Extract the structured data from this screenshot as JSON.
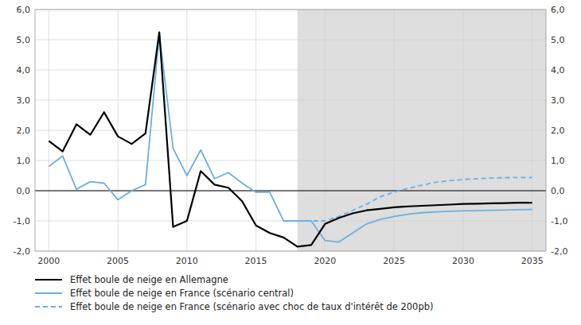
{
  "chart_data": {
    "type": "line",
    "x": [
      2000,
      2001,
      2002,
      2003,
      2004,
      2005,
      2006,
      2007,
      2008,
      2009,
      2010,
      2011,
      2012,
      2013,
      2014,
      2015,
      2016,
      2017,
      2018,
      2019,
      2020,
      2021,
      2022,
      2023,
      2024,
      2025,
      2026,
      2027,
      2028,
      2029,
      2030,
      2031,
      2032,
      2033,
      2034,
      2035
    ],
    "series": [
      {
        "name": "Effet boule de neige en Allemagne",
        "color": "#000000",
        "line_style": "solid",
        "values": [
          1.65,
          1.3,
          2.2,
          1.85,
          2.6,
          1.8,
          1.55,
          1.9,
          5.25,
          -1.2,
          -1.0,
          0.65,
          0.2,
          0.1,
          -0.35,
          -1.15,
          -1.4,
          -1.55,
          -1.85,
          -1.8,
          -1.1,
          -0.9,
          -0.75,
          -0.65,
          -0.6,
          -0.55,
          -0.52,
          -0.5,
          -0.48,
          -0.46,
          -0.44,
          -0.43,
          -0.42,
          -0.41,
          -0.4,
          -0.4
        ]
      },
      {
        "name": "Effet boule de neige en France (scénario central)",
        "color": "#6ab0e0",
        "line_style": "solid",
        "values": [
          0.8,
          1.15,
          0.05,
          0.3,
          0.25,
          -0.3,
          0.0,
          0.2,
          5.2,
          1.4,
          0.5,
          1.35,
          0.4,
          0.6,
          0.25,
          -0.05,
          -0.05,
          -1.0,
          -1.0,
          -1.0,
          -1.65,
          -1.7,
          -1.4,
          -1.1,
          -0.95,
          -0.85,
          -0.78,
          -0.73,
          -0.7,
          -0.68,
          -0.67,
          -0.66,
          -0.65,
          -0.64,
          -0.63,
          -0.62
        ]
      },
      {
        "name": "Effet boule de neige en France (scénario avec choc de taux d'intérêt de 200pb)",
        "color": "#6ab0e0",
        "line_style": "dashed",
        "values": [
          null,
          null,
          null,
          null,
          null,
          null,
          null,
          null,
          null,
          null,
          null,
          null,
          null,
          null,
          null,
          null,
          null,
          null,
          -1.0,
          -1.0,
          -1.0,
          -0.85,
          -0.65,
          -0.45,
          -0.2,
          -0.05,
          0.08,
          0.18,
          0.28,
          0.33,
          0.37,
          0.4,
          0.42,
          0.43,
          0.44,
          0.44
        ]
      }
    ],
    "shade": {
      "start": 2018,
      "end": 2036,
      "color": "#dedede"
    },
    "hlines": [
      0
    ],
    "xlim": [
      1999,
      2036
    ],
    "xticks": [
      2000,
      2005,
      2010,
      2015,
      2020,
      2025,
      2030,
      2035
    ],
    "ylim": [
      -2.0,
      6.0
    ],
    "yticks": [
      {
        "value": -2.0,
        "label": "-2,0"
      },
      {
        "value": -1.0,
        "label": "-1,0"
      },
      {
        "value": 0.0,
        "label": "0,0"
      },
      {
        "value": 1.0,
        "label": "1,0"
      },
      {
        "value": 2.0,
        "label": "2,0"
      },
      {
        "value": 3.0,
        "label": "3,0"
      },
      {
        "value": 4.0,
        "label": "4,0"
      },
      {
        "value": 5.0,
        "label": "5,0"
      },
      {
        "value": 6.0,
        "label": "6,0"
      }
    ],
    "y2lim": [
      -2.0,
      6.0
    ],
    "y2ticks": [
      {
        "value": -2.0,
        "label": "-2,0"
      },
      {
        "value": -1.0,
        "label": "-1,0"
      },
      {
        "value": 0.0,
        "label": "0,0"
      },
      {
        "value": 1.0,
        "label": "1,0"
      },
      {
        "value": 2.0,
        "label": "2,0"
      },
      {
        "value": 3.0,
        "label": "3,0"
      },
      {
        "value": 4.0,
        "label": "4,0"
      },
      {
        "value": 5.0,
        "label": "5,0"
      },
      {
        "value": 6.0,
        "label": "6,0"
      }
    ],
    "grid": true,
    "legend": "bottom"
  }
}
